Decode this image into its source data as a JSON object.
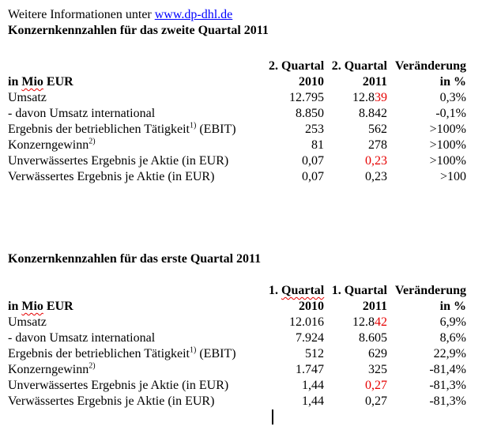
{
  "colors": {
    "red_text": "#e60000",
    "link_blue": "#0000ff"
  },
  "intro": {
    "text": "Weitere Informationen unter ",
    "link": "www.dp-dhl.de"
  },
  "tables": [
    {
      "title": "Konzernkennzahlen für das zweite Quartal 2011",
      "header": {
        "col1": "2. Quartal",
        "col2": "2. Quartal",
        "col3": "Veränderung"
      },
      "unit_row": {
        "pre": "in ",
        "word": "Mio",
        "post": " EUR",
        "col1": "2010",
        "col2": "2011",
        "col3": "in %"
      },
      "rows": [
        {
          "label": "Umsatz",
          "sup": "",
          "label_post": "",
          "v2010": "12.795",
          "v2011": "12.8",
          "v2011_red": "39",
          "change": "0,3%"
        },
        {
          "label": "- davon Umsatz international",
          "sup": "",
          "label_post": "",
          "v2010": "8.850",
          "v2011": "8.842",
          "v2011_red": "",
          "change": "-0,1%"
        },
        {
          "label": "Ergebnis der betrieblichen Tätigkeit",
          "sup": "1)",
          "label_post": " (EBIT)",
          "v2010": "253",
          "v2011": "562",
          "v2011_red": "",
          "change": ">100%"
        },
        {
          "label": "Konzerngewinn",
          "sup": "2)",
          "label_post": "",
          "v2010": "81",
          "v2011": "278",
          "v2011_red": "",
          "change": ">100%"
        },
        {
          "label": "Unverwässertes Ergebnis je Aktie (in EUR)",
          "sup": "",
          "label_post": "",
          "v2010": "0,07",
          "v2011": "",
          "v2011_red": "0,23",
          "change": ">100%"
        },
        {
          "label": "Verwässertes Ergebnis je Aktie (in EUR)",
          "sup": "",
          "label_post": "",
          "v2010": "0,07",
          "v2011": "0,23",
          "v2011_red": "",
          "change": ">100"
        }
      ]
    },
    {
      "title": "Konzernkennzahlen für das erste Quartal 2011",
      "header": {
        "col1_pre": "1. ",
        "col1_word": "Quartal",
        "col2": "1. Quartal",
        "col3": "Veränderung"
      },
      "unit_row": {
        "pre": "in ",
        "word": "Mio",
        "post": " EUR",
        "col1": "2010",
        "col2": "2011",
        "col3": "in %"
      },
      "rows": [
        {
          "label": "Umsatz",
          "sup": "",
          "label_post": "",
          "v2010": "12.016",
          "v2011": "12.8",
          "v2011_red": "42",
          "change": "6,9%"
        },
        {
          "label": "- davon Umsatz international",
          "sup": "",
          "label_post": "",
          "v2010": "7.924",
          "v2011": "8.605",
          "v2011_red": "",
          "change": "8,6%"
        },
        {
          "label": "Ergebnis der betrieblichen Tätigkeit",
          "sup": "1)",
          "label_post": " (EBIT)",
          "v2010": "512",
          "v2011": "629",
          "v2011_red": "",
          "change": "22,9%"
        },
        {
          "label": "Konzerngewinn",
          "sup": "2)",
          "label_post": "",
          "v2010": "1.747",
          "v2011": "325",
          "v2011_red": "",
          "change": "-81,4%"
        },
        {
          "label": "Unverwässertes Ergebnis je Aktie (in EUR)",
          "sup": "",
          "label_post": "",
          "v2010": "1,44",
          "v2011": "",
          "v2011_red": "0,27",
          "change": "-81,3%"
        },
        {
          "label": "Verwässertes Ergebnis je Aktie (in EUR)",
          "sup": "",
          "label_post": "",
          "v2010": "1,44",
          "v2011": "0,27",
          "v2011_red": "",
          "change": "-81,3%"
        }
      ]
    }
  ]
}
